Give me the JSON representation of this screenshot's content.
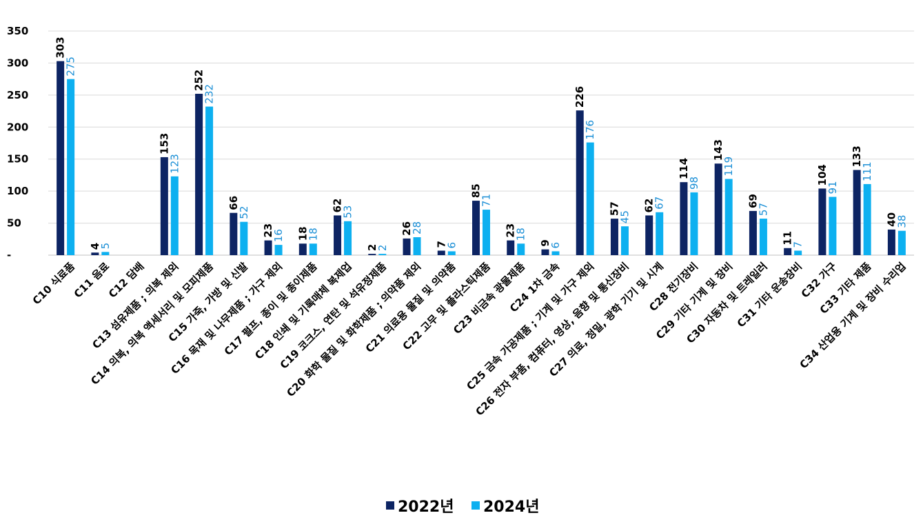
{
  "chart_data": {
    "type": "bar",
    "title": "",
    "xlabel": "",
    "ylabel": "",
    "ylim": [
      0,
      350
    ],
    "yticks": [
      "-",
      "50",
      "100",
      "150",
      "200",
      "250",
      "300",
      "350"
    ],
    "grid": true,
    "legend_position": "bottom",
    "categories": [
      "C10 식료품",
      "C11 음료",
      "C12 담배",
      "C13 섬유제품 ; 의복 제외",
      "C14 의복, 의복 액세서리 및 모피제품",
      "C15 가죽, 가방 및 신발",
      "C16 목재 및 나무제품 ; 가구 제외",
      "C17 펄프, 종이 및 종이제품",
      "C18 인쇄 및 기록매체 복제업",
      "C19 코크스, 연탄 및 석유정제품",
      "C20 화학 물질 및 화학제품 ; 의약품 제외",
      "C21 의료용 물질 및 의약품",
      "C22 고무 및 플라스틱제품",
      "C23 비금속 광물제품",
      "C24 1차 금속",
      "C25 금속 가공제품 ; 기계 및 가구 제외",
      "C26 전자 부품, 컴퓨터, 영상, 음향 및 통신장비",
      "C27 의료, 정밀, 광학 기기 및 시계",
      "C28 전기장비",
      "C29 기타 기계 및 장비",
      "C30 자동차 및 트레일러",
      "C31 기타 운송장비",
      "C32 가구",
      "C33 기타 제품",
      "C34 산업용 기계 및 장비 수리업"
    ],
    "series": [
      {
        "name": "2022년",
        "color": "#0d2463",
        "values": [
          303,
          4,
          null,
          153,
          252,
          66,
          23,
          18,
          62,
          2,
          26,
          7,
          85,
          23,
          9,
          226,
          57,
          62,
          114,
          143,
          69,
          11,
          104,
          133,
          40
        ]
      },
      {
        "name": "2024년",
        "color": "#0db0f0",
        "values": [
          275,
          5,
          null,
          123,
          232,
          52,
          16,
          18,
          53,
          2,
          28,
          6,
          71,
          18,
          6,
          176,
          45,
          67,
          98,
          119,
          57,
          7,
          91,
          111,
          38
        ]
      }
    ]
  }
}
